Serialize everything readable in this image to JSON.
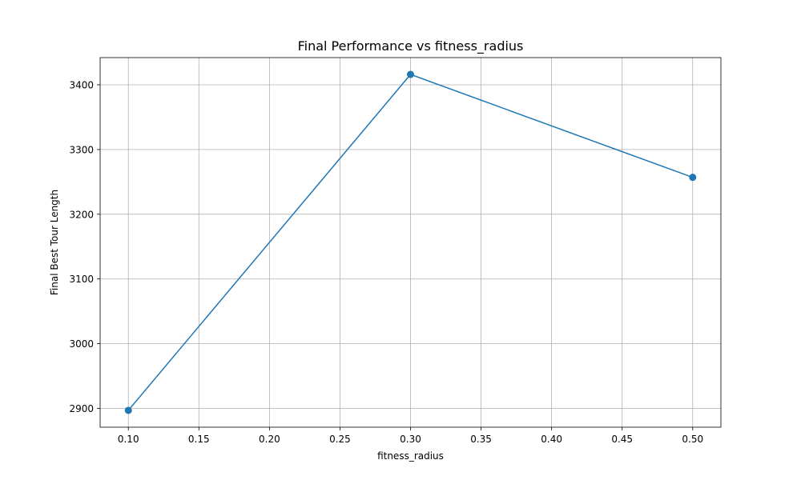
{
  "chart_data": {
    "type": "line",
    "title": "Final Performance vs fitness_radius",
    "xlabel": "fitness_radius",
    "ylabel": "Final Best Tour Length",
    "x": [
      0.1,
      0.3,
      0.5
    ],
    "series": [
      {
        "values": [
          2897,
          3416,
          3257
        ],
        "color": "#1f77b4",
        "marker": "circle"
      }
    ],
    "xlim": [
      0.08,
      0.52
    ],
    "ylim": [
      2871,
      3442
    ],
    "xticks": [
      0.1,
      0.15,
      0.2,
      0.25,
      0.3,
      0.35,
      0.4,
      0.45,
      0.5
    ],
    "xtick_labels": [
      "0.10",
      "0.15",
      "0.20",
      "0.25",
      "0.30",
      "0.35",
      "0.40",
      "0.45",
      "0.50"
    ],
    "yticks": [
      2900,
      3000,
      3100,
      3200,
      3300,
      3400
    ],
    "ytick_labels": [
      "2900",
      "3000",
      "3100",
      "3200",
      "3300",
      "3400"
    ],
    "grid": true,
    "grid_color": "#b0b0b0"
  }
}
